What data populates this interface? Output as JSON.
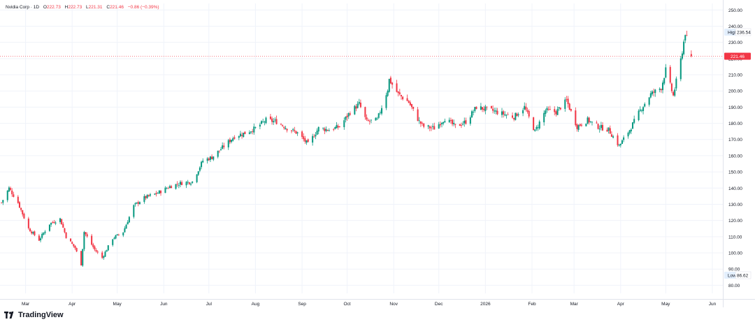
{
  "legend": {
    "symbol": "Nvidia Corp · 1D",
    "open_label": "O",
    "open": "222.73",
    "high_label": "H",
    "high": "222.73",
    "low_label": "L",
    "low": "221.31",
    "close_label": "C",
    "close": "221.46",
    "change": "−0.86 (−0.39%)"
  },
  "branding": {
    "name": "TradingView"
  },
  "colors": {
    "up": "#089981",
    "down": "#f23645",
    "grid": "#f0f3fa",
    "axis_text": "#131722",
    "badge_dark": "#e3effd"
  },
  "chart_data": {
    "type": "candlestick",
    "y_ticks": [
      80,
      90,
      100,
      110,
      120,
      130,
      140,
      150,
      160,
      170,
      180,
      190,
      200,
      210,
      220,
      230,
      240,
      250
    ],
    "y_tick_labels": [
      "80.00",
      "90.00",
      "100.00",
      "110.00",
      "120.00",
      "130.00",
      "140.00",
      "150.00",
      "160.00",
      "170.00",
      "180.00",
      "190.00",
      "200.00",
      "210.00",
      "220.00",
      "230.00",
      "240.00",
      "250.00"
    ],
    "ylim": [
      75,
      254
    ],
    "x_labels": [
      {
        "label": "Mar",
        "date": "2025-03-01"
      },
      {
        "label": "Apr",
        "date": "2025-04-01"
      },
      {
        "label": "May",
        "date": "2025-05-01"
      },
      {
        "label": "Jun",
        "date": "2025-06-01"
      },
      {
        "label": "Jul",
        "date": "2025-07-01"
      },
      {
        "label": "Aug",
        "date": "2025-08-01"
      },
      {
        "label": "Sep",
        "date": "2025-09-01"
      },
      {
        "label": "Oct",
        "date": "2025-10-01"
      },
      {
        "label": "Nov",
        "date": "2025-11-01"
      },
      {
        "label": "Dec",
        "date": "2025-12-01"
      },
      {
        "label": "2026",
        "date": "2026-01-01"
      },
      {
        "label": "Feb",
        "date": "2026-02-01"
      },
      {
        "label": "Mar",
        "date": "2026-03-01"
      },
      {
        "label": "Apr",
        "date": "2026-04-01"
      },
      {
        "label": "May",
        "date": "2026-05-01"
      },
      {
        "label": "Jun",
        "date": "2026-06-01"
      }
    ],
    "xlim": [
      "2025-02-12",
      "2026-06-08"
    ],
    "high_marker": {
      "label": "High",
      "value": "236.54"
    },
    "low_marker": {
      "label": "Low",
      "value": "86.62"
    },
    "last_price": {
      "value": "221.46",
      "y": 221.46
    },
    "anchors": [
      [
        "2025-02-13",
        131
      ],
      [
        "2025-02-18",
        140
      ],
      [
        "2025-02-24",
        131
      ],
      [
        "2025-03-03",
        115
      ],
      [
        "2025-03-10",
        108
      ],
      [
        "2025-03-17",
        118
      ],
      [
        "2025-03-24",
        121
      ],
      [
        "2025-03-28",
        110
      ],
      [
        "2025-04-03",
        103
      ],
      [
        "2025-04-07",
        93
      ],
      [
        "2025-04-09",
        113
      ],
      [
        "2025-04-16",
        102
      ],
      [
        "2025-04-21",
        97
      ],
      [
        "2025-04-28",
        109
      ],
      [
        "2025-05-05",
        113
      ],
      [
        "2025-05-12",
        129
      ],
      [
        "2025-05-19",
        134
      ],
      [
        "2025-05-28",
        137
      ],
      [
        "2025-06-05",
        141
      ],
      [
        "2025-06-12",
        143
      ],
      [
        "2025-06-20",
        144
      ],
      [
        "2025-06-27",
        157
      ],
      [
        "2025-07-03",
        159
      ],
      [
        "2025-07-10",
        165
      ],
      [
        "2025-07-18",
        172
      ],
      [
        "2025-07-25",
        174
      ],
      [
        "2025-08-01",
        177
      ],
      [
        "2025-08-08",
        182
      ],
      [
        "2025-08-15",
        181
      ],
      [
        "2025-08-22",
        177
      ],
      [
        "2025-08-29",
        174
      ],
      [
        "2025-09-05",
        167
      ],
      [
        "2025-09-12",
        177
      ],
      [
        "2025-09-19",
        176
      ],
      [
        "2025-09-26",
        178
      ],
      [
        "2025-10-03",
        187
      ],
      [
        "2025-10-09",
        192
      ],
      [
        "2025-10-14",
        181
      ],
      [
        "2025-10-21",
        182
      ],
      [
        "2025-10-28",
        201
      ],
      [
        "2025-10-29",
        207
      ],
      [
        "2025-11-04",
        198
      ],
      [
        "2025-11-11",
        193
      ],
      [
        "2025-11-18",
        181
      ],
      [
        "2025-11-21",
        178
      ],
      [
        "2025-11-28",
        177
      ],
      [
        "2025-12-05",
        183
      ],
      [
        "2025-12-12",
        178
      ],
      [
        "2025-12-19",
        181
      ],
      [
        "2025-12-26",
        190
      ],
      [
        "2026-01-05",
        188
      ],
      [
        "2026-01-12",
        186
      ],
      [
        "2026-01-20",
        184
      ],
      [
        "2026-01-27",
        190
      ],
      [
        "2026-02-03",
        175
      ],
      [
        "2026-02-10",
        188
      ],
      [
        "2026-02-17",
        187
      ],
      [
        "2026-02-24",
        194
      ],
      [
        "2026-03-03",
        178
      ],
      [
        "2026-03-10",
        182
      ],
      [
        "2026-03-17",
        178
      ],
      [
        "2026-03-24",
        176
      ],
      [
        "2026-03-31",
        166
      ],
      [
        "2026-04-07",
        176
      ],
      [
        "2026-04-14",
        188
      ],
      [
        "2026-04-21",
        198
      ],
      [
        "2026-04-28",
        202
      ],
      [
        "2026-05-01",
        213
      ],
      [
        "2026-05-06",
        197
      ],
      [
        "2026-05-11",
        219
      ],
      [
        "2026-05-14",
        236
      ],
      [
        "2026-05-18",
        221.46
      ]
    ]
  }
}
